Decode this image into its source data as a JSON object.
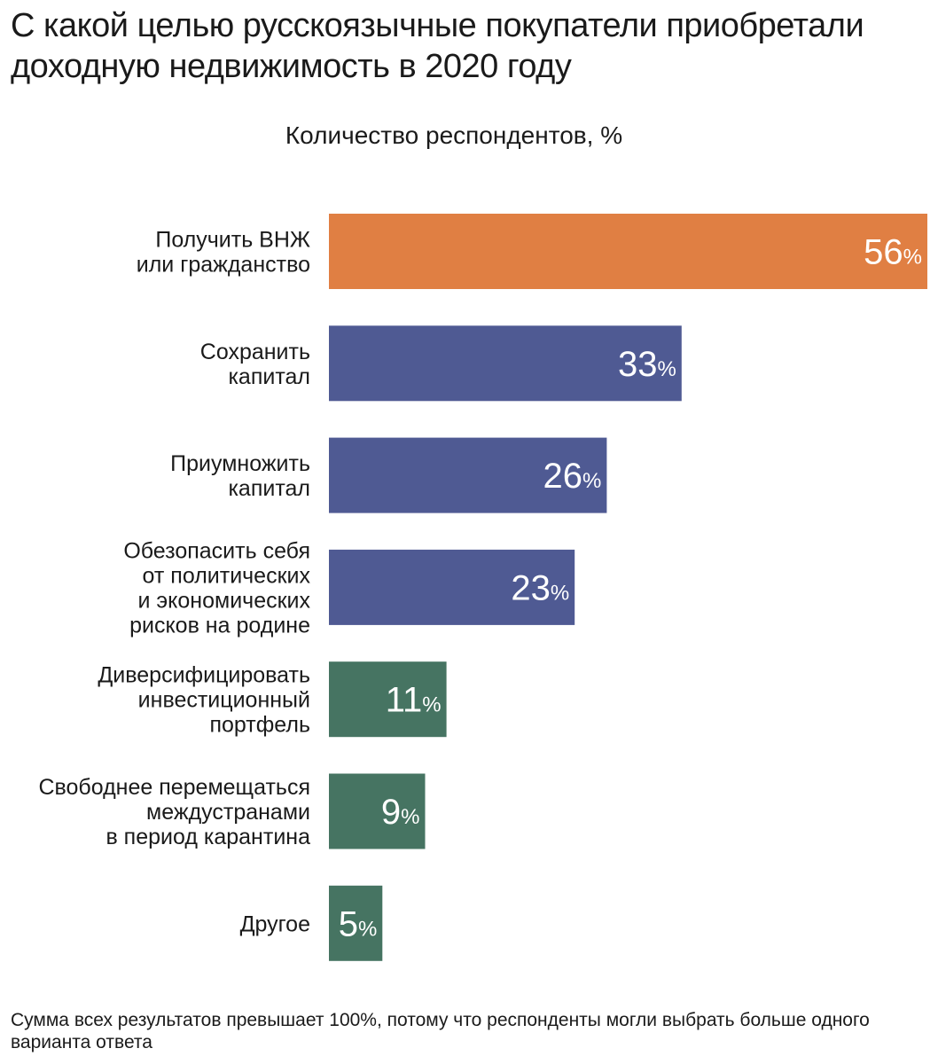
{
  "chart_data": {
    "type": "bar",
    "orientation": "horizontal",
    "title": "С какой целью русскоязычные покупатели приобретали доходную недвижимость в 2020 году",
    "subtitle": "Количество респондентов, %",
    "unit": "%",
    "xlim": [
      0,
      56
    ],
    "grid": false,
    "categories": [
      [
        "Получить ВНЖ",
        "или гражданство"
      ],
      [
        "Сохранить",
        "капитал"
      ],
      [
        "Приумножить",
        "капитал"
      ],
      [
        "Обезопасить себя",
        "от политических",
        "и экономических",
        "рисков на родине"
      ],
      [
        "Диверсифицировать",
        "инвестиционный",
        "портфель"
      ],
      [
        "Свободнее перемещаться",
        "междустранами",
        "в период карантина"
      ],
      [
        "Другое"
      ]
    ],
    "values": [
      56,
      33,
      26,
      23,
      11,
      9,
      5
    ],
    "colors": [
      "#e07f43",
      "#4f5a93",
      "#4f5a93",
      "#4f5a93",
      "#467462",
      "#467462",
      "#467462"
    ],
    "footnote": "Сумма всех результатов превышает 100%, потому что респонденты могли выбрать больше одного варианта ответа"
  }
}
